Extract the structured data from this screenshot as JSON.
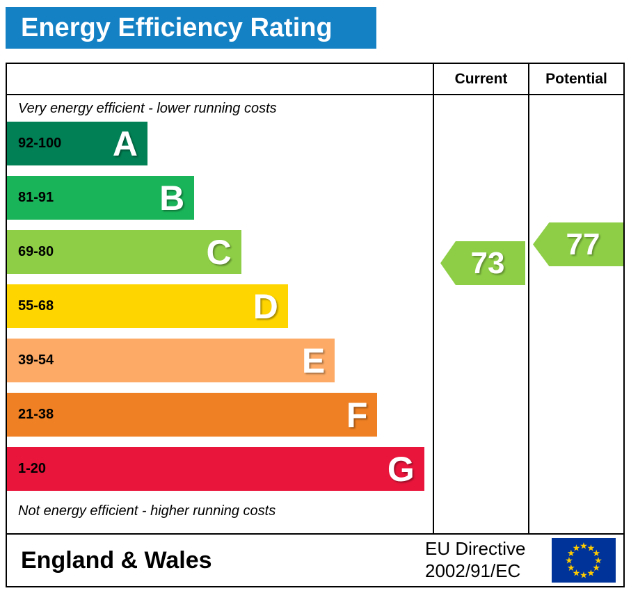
{
  "title": "Energy Efficiency Rating",
  "header": {
    "current": "Current",
    "potential": "Potential"
  },
  "notes": {
    "top": "Very energy efficient - lower running costs",
    "bottom": "Not energy efficient - higher running costs"
  },
  "bands": [
    {
      "letter": "A",
      "range": "92-100",
      "color": "#008054",
      "width_pct": 33
    },
    {
      "letter": "B",
      "range": "81-91",
      "color": "#19b459",
      "width_pct": 44
    },
    {
      "letter": "C",
      "range": "69-80",
      "color": "#8dce46",
      "width_pct": 55
    },
    {
      "letter": "D",
      "range": "55-68",
      "color": "#ffd500",
      "width_pct": 66
    },
    {
      "letter": "E",
      "range": "39-54",
      "color": "#fcaa65",
      "width_pct": 77
    },
    {
      "letter": "F",
      "range": "21-38",
      "color": "#ef8023",
      "width_pct": 87
    },
    {
      "letter": "G",
      "range": "1-20",
      "color": "#e9153b",
      "width_pct": 98
    }
  ],
  "ratings": {
    "current": {
      "value": "73",
      "band": "C",
      "color": "#8dce46"
    },
    "potential": {
      "value": "77",
      "band": "C",
      "color": "#8dce46"
    }
  },
  "footer": {
    "region": "England & Wales",
    "directive_line1": "EU Directive",
    "directive_line2": "2002/91/EC"
  },
  "colors": {
    "header_blue": "#1581c5",
    "border": "#000000"
  },
  "flag": {
    "background": "#003399",
    "star_color": "#ffcc00",
    "star_count": 12
  },
  "chart_data": {
    "type": "bar",
    "title": "Energy Efficiency Rating",
    "categories": [
      "A (92-100)",
      "B (81-91)",
      "C (69-80)",
      "D (55-68)",
      "E (39-54)",
      "F (21-38)",
      "G (1-20)"
    ],
    "band_ranges": [
      [
        92,
        100
      ],
      [
        81,
        91
      ],
      [
        69,
        80
      ],
      [
        55,
        68
      ],
      [
        39,
        54
      ],
      [
        21,
        38
      ],
      [
        1,
        20
      ]
    ],
    "band_colors": [
      "#008054",
      "#19b459",
      "#8dce46",
      "#ffd500",
      "#fcaa65",
      "#ef8023",
      "#e9153b"
    ],
    "bar_lengths_pct": [
      33,
      44,
      55,
      66,
      77,
      87,
      98
    ],
    "current_rating": 73,
    "current_band": "C",
    "potential_rating": 77,
    "potential_band": "C",
    "top_annotation": "Very energy efficient - lower running costs",
    "bottom_annotation": "Not energy efficient - higher running costs",
    "column_headers": [
      "Current",
      "Potential"
    ],
    "region": "England & Wales",
    "directive": "EU Directive 2002/91/EC"
  }
}
